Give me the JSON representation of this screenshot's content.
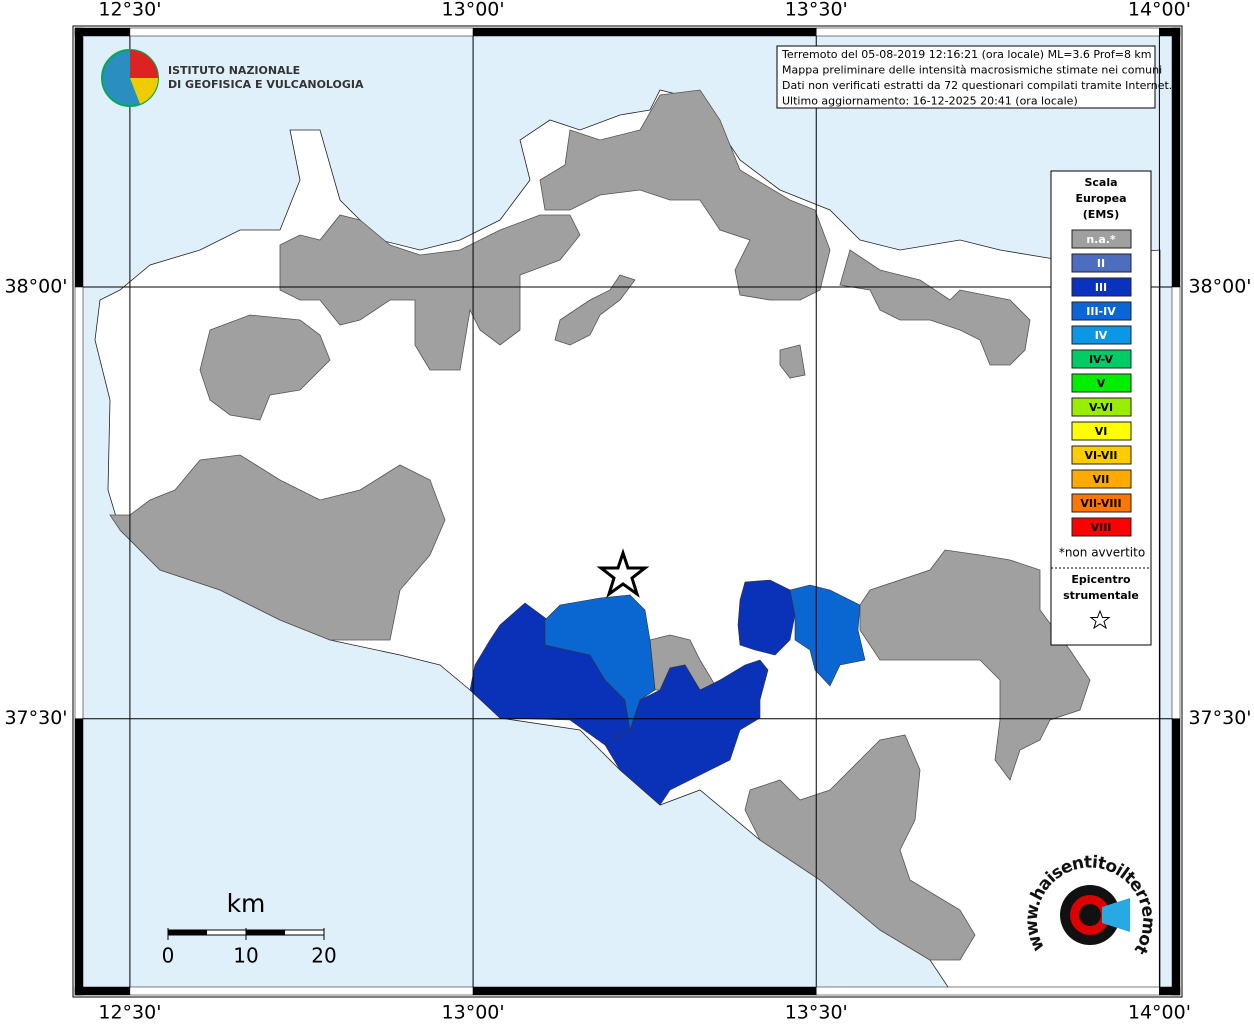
{
  "header": {
    "logo_lines": [
      "ISTITUTO NAZIONALE",
      "DI GEOFISICA E VULCANOLOGIA"
    ],
    "info_lines": [
      "Terremoto del 05-08-2019 12:16:21 (ora locale) ML=3.6 Prof=8 km",
      "Mappa preliminare delle intensità macrosismiche stimate nei comuni",
      "Dati non verificati estratti da 72 questionari compilati tramite Internet.",
      "Ultimo aggiornamento: 16-12-2025 20:41 (ora locale)"
    ]
  },
  "map": {
    "lonlim": [
      12.42,
      14.03
    ],
    "latlim": [
      37.18,
      38.3
    ],
    "lon_ticks": [
      {
        "value": 12.5,
        "label": "12°30'"
      },
      {
        "value": 13.0,
        "label": "13°00'"
      },
      {
        "value": 13.5,
        "label": "13°30'"
      },
      {
        "value": 14.0,
        "label": "14°00'"
      }
    ],
    "lat_ticks": [
      {
        "value": 38.0,
        "label": "38°00'"
      },
      {
        "value": 37.5,
        "label": "37°30'"
      }
    ]
  },
  "legend": {
    "title_lines": [
      "Scala",
      "Europea",
      "(EMS)"
    ],
    "items": [
      {
        "label": "n.a.*",
        "color": "#a0a0a0"
      },
      {
        "label": "II",
        "color": "#4d6ebf"
      },
      {
        "label": "III",
        "color": "#0a32bf"
      },
      {
        "label": "III-IV",
        "color": "#0a66d6"
      },
      {
        "label": "IV",
        "color": "#0b96e6"
      },
      {
        "label": "IV-V",
        "color": "#00cc66"
      },
      {
        "label": "V",
        "color": "#00ee00"
      },
      {
        "label": "V-VI",
        "color": "#99ee00"
      },
      {
        "label": "VI",
        "color": "#ffff00"
      },
      {
        "label": "VI-VII",
        "color": "#ffcc00"
      },
      {
        "label": "VII",
        "color": "#ffaa00"
      },
      {
        "label": "VII-VIII",
        "color": "#ff7700"
      },
      {
        "label": "VIII",
        "color": "#ff0000"
      }
    ],
    "note": "*non avvertito",
    "epicenter_lines": [
      "Epicentro",
      "strumentale"
    ]
  },
  "scale": {
    "title": "km",
    "ticks": [
      0,
      10,
      20
    ]
  },
  "watermark": "www.haisentitoilterremoto.it"
}
